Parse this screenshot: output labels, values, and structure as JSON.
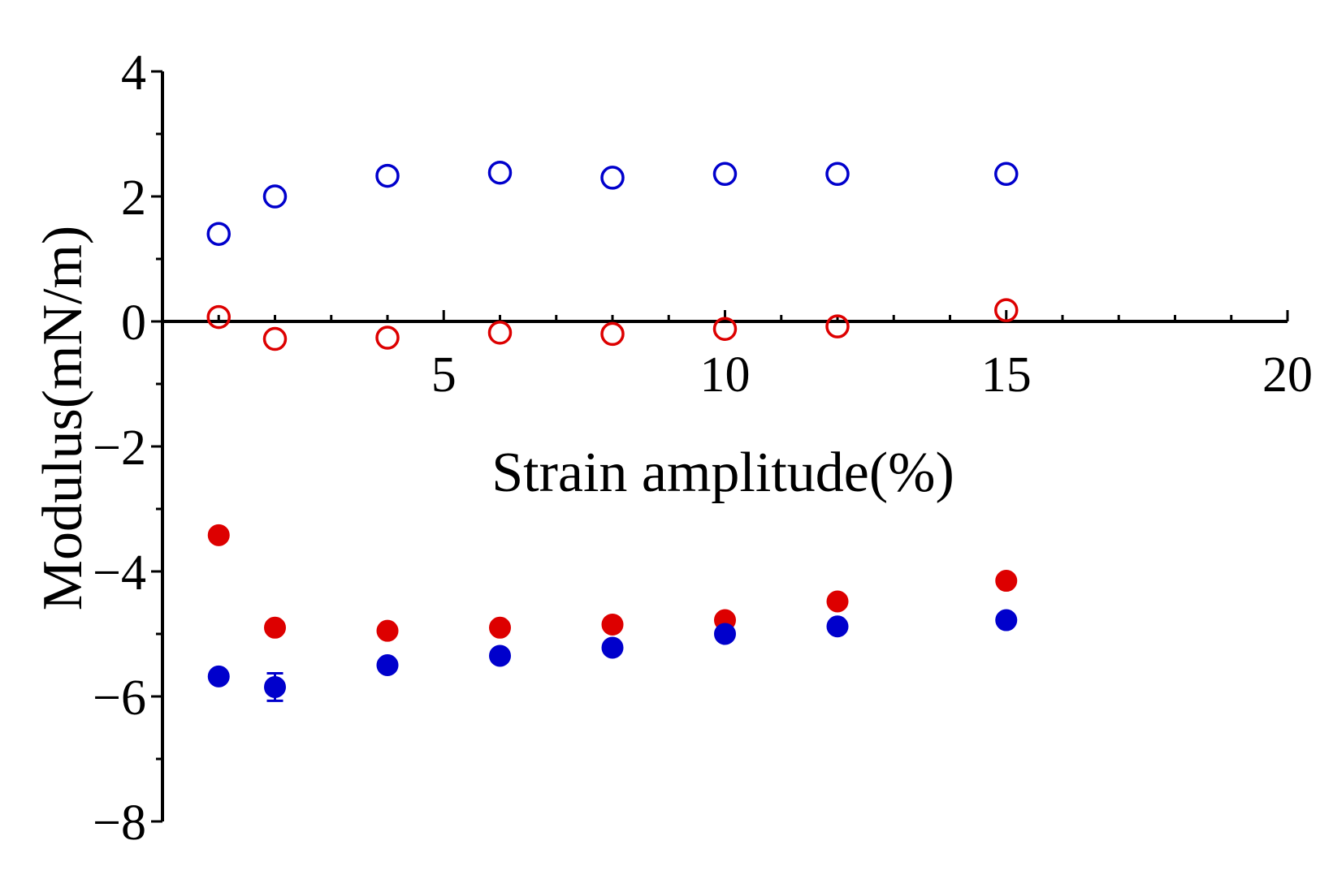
{
  "chart_data": {
    "type": "scatter",
    "title": "",
    "xlabel": "Strain amplitude(%)",
    "ylabel": "Modulus(mN/m)",
    "xlim": [
      0,
      20
    ],
    "ylim": [
      -8,
      4
    ],
    "x_ticks": [
      5,
      10,
      15,
      20
    ],
    "x_tick_labels": [
      "5",
      "10",
      "15",
      "20"
    ],
    "y_ticks": [
      4,
      2,
      0,
      -2,
      -4,
      -6,
      -8
    ],
    "y_tick_labels": [
      "4",
      "2",
      "0",
      "−2",
      "−4",
      "−6",
      "−8"
    ],
    "x_minor_step": 1,
    "y_minor_step": 1,
    "grid": false,
    "legend": "none",
    "series": [
      {
        "color": "#0000cc",
        "marker": "open-circle",
        "x": [
          1,
          2,
          4,
          6,
          8,
          10,
          12,
          15
        ],
        "y": [
          1.4,
          2.0,
          2.33,
          2.38,
          2.3,
          2.36,
          2.36,
          2.36
        ]
      },
      {
        "color": "#dd0000",
        "marker": "open-circle",
        "x": [
          1,
          2,
          4,
          6,
          8,
          10,
          12,
          15
        ],
        "y": [
          0.07,
          -0.28,
          -0.26,
          -0.18,
          -0.2,
          -0.12,
          -0.08,
          0.18
        ]
      },
      {
        "color": "#dd0000",
        "marker": "filled-circle",
        "x": [
          1,
          2,
          4,
          6,
          8,
          10,
          12,
          15
        ],
        "y": [
          -3.42,
          -4.9,
          -4.95,
          -4.9,
          -4.85,
          -4.78,
          -4.48,
          -4.15
        ]
      },
      {
        "color": "#0000cc",
        "marker": "filled-circle",
        "x": [
          1,
          2,
          4,
          6,
          8,
          10,
          12,
          15
        ],
        "y": [
          -5.68,
          -5.85,
          -5.5,
          -5.35,
          -5.22,
          -5.0,
          -4.88,
          -4.78
        ],
        "error": [
          0,
          0.22,
          0,
          0,
          0,
          0,
          0,
          0
        ]
      }
    ]
  }
}
